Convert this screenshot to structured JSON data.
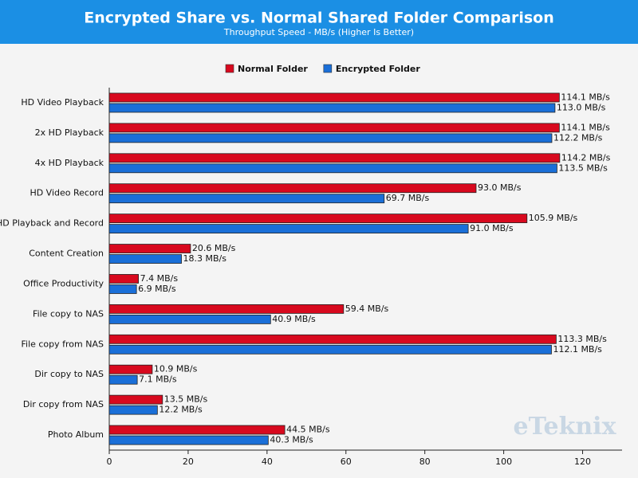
{
  "chart_data": {
    "type": "hbar",
    "title": "Encrypted Share vs. Normal Shared Folder Comparison",
    "subtitle": "Throughput Speed - MB/s (Higher Is Better)",
    "watermark": "eTeknix",
    "categories": [
      "HD Video Playback",
      "2x HD Playback",
      "4x HD Playback",
      "HD Video Record",
      "HD Playback and Record",
      "Content Creation",
      "Office Productivity",
      "File copy to NAS",
      "File copy from NAS",
      "Dir copy to NAS",
      "Dir copy from NAS",
      "Photo Album"
    ],
    "series": [
      {
        "name": "Normal Folder",
        "color": "#d8091e",
        "values": [
          114.1,
          114.1,
          114.2,
          93.0,
          105.9,
          20.6,
          7.4,
          59.4,
          113.3,
          10.9,
          13.5,
          44.5
        ],
        "value_labels": [
          "114.1 MB/s",
          "114.1 MB/s",
          "114.2 MB/s",
          "93.0 MB/s",
          "105.9 MB/s",
          "20.6 MB/s",
          "7.4 MB/s",
          "59.4 MB/s",
          "113.3 MB/s",
          "10.9 MB/s",
          "13.5 MB/s",
          "44.5 MB/s"
        ]
      },
      {
        "name": "Encrypted Folder",
        "color": "#1a6fd8",
        "values": [
          113.0,
          112.2,
          113.5,
          69.7,
          91.0,
          18.3,
          6.9,
          40.9,
          112.1,
          7.1,
          12.2,
          40.3
        ],
        "value_labels": [
          "113.0 MB/s",
          "112.2 MB/s",
          "113.5 MB/s",
          "69.7 MB/s",
          "91.0 MB/s",
          "18.3 MB/s",
          "6.9 MB/s",
          "40.9 MB/s",
          "112.1 MB/s",
          "7.1 MB/s",
          "12.2 MB/s",
          "40.3 MB/s"
        ]
      }
    ],
    "xlim": [
      0,
      130
    ],
    "xticks": [
      0,
      20,
      40,
      60,
      80,
      100,
      120
    ],
    "grid": false,
    "legend": "top"
  }
}
